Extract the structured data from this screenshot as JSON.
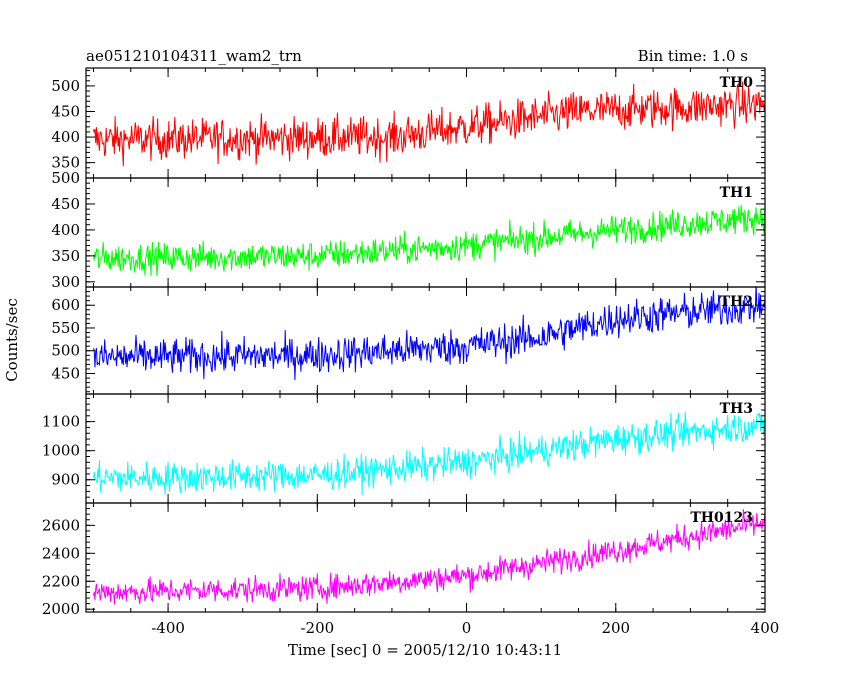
{
  "header": {
    "title": "ae051210104311_wam2_trn",
    "bin_time": "Bin time: 1.0 s"
  },
  "chart_data": {
    "type": "line",
    "xlabel": "Time [sec] 0 = 2005/12/10 10:43:11",
    "ylabel": "Counts/sec",
    "xlim": [
      -510,
      400
    ],
    "x_ticks": [
      -400,
      -200,
      0,
      200,
      400
    ],
    "x_step": 1,
    "panels": [
      {
        "name": "TH0",
        "color": "#ff0000",
        "ylim": [
          320,
          535
        ],
        "yticks": [
          350,
          400,
          450,
          500
        ],
        "trend": [
          [
            -500,
            395
          ],
          [
            -100,
            400
          ],
          [
            0,
            420
          ],
          [
            150,
            450
          ],
          [
            400,
            465
          ]
        ],
        "noise": 28
      },
      {
        "name": "TH1",
        "color": "#00ff00",
        "ylim": [
          290,
          500
        ],
        "yticks": [
          300,
          350,
          400,
          450,
          500
        ],
        "trend": [
          [
            -500,
            345
          ],
          [
            -200,
            350
          ],
          [
            0,
            370
          ],
          [
            200,
            400
          ],
          [
            400,
            425
          ]
        ],
        "noise": 20
      },
      {
        "name": "TH2",
        "color": "#0000ff",
        "ylim": [
          405,
          640
        ],
        "yticks": [
          450,
          500,
          550,
          600
        ],
        "trend": [
          [
            -500,
            485
          ],
          [
            -200,
            490
          ],
          [
            0,
            510
          ],
          [
            100,
            530
          ],
          [
            200,
            570
          ],
          [
            400,
            600
          ]
        ],
        "noise": 28
      },
      {
        "name": "TH3",
        "color": "#00ffff",
        "ylim": [
          820,
          1195
        ],
        "yticks": [
          900,
          1000,
          1100
        ],
        "trend": [
          [
            -500,
            905
          ],
          [
            -200,
            915
          ],
          [
            0,
            960
          ],
          [
            200,
            1040
          ],
          [
            400,
            1090
          ]
        ],
        "noise": 38
      },
      {
        "name": "TH0123",
        "color": "#ff00ff",
        "ylim": [
          1980,
          2760
        ],
        "yticks": [
          2000,
          2200,
          2400,
          2600
        ],
        "trend": [
          [
            -500,
            2120
          ],
          [
            -200,
            2150
          ],
          [
            0,
            2240
          ],
          [
            200,
            2420
          ],
          [
            400,
            2620
          ]
        ],
        "noise": 65
      }
    ]
  }
}
